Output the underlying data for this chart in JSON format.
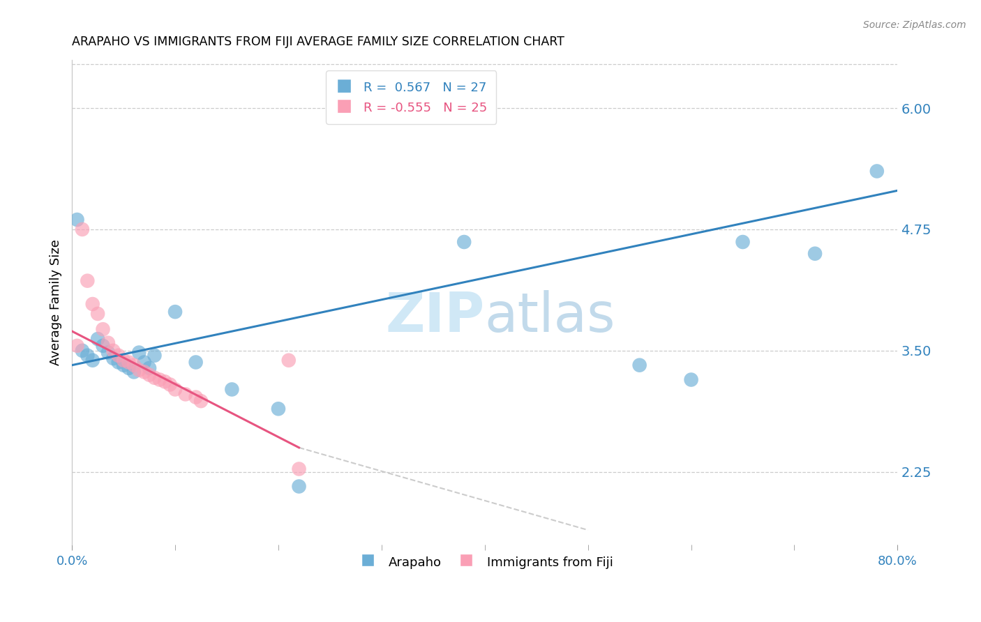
{
  "title": "ARAPAHO VS IMMIGRANTS FROM FIJI AVERAGE FAMILY SIZE CORRELATION CHART",
  "source": "Source: ZipAtlas.com",
  "ylabel": "Average Family Size",
  "right_yticks": [
    2.25,
    3.5,
    4.75,
    6.0
  ],
  "x_min": 0.0,
  "x_max": 0.8,
  "y_min": 1.5,
  "y_max": 6.5,
  "legend_r1": "R =  0.567   N = 27",
  "legend_r2": "R = -0.555   N = 25",
  "blue_color": "#6baed6",
  "pink_color": "#fa9fb5",
  "trend_blue": "#3182bd",
  "trend_pink": "#e75480",
  "trend_gray_color": "#cccccc",
  "arapaho_x": [
    0.005,
    0.01,
    0.015,
    0.02,
    0.025,
    0.03,
    0.035,
    0.04,
    0.045,
    0.05,
    0.055,
    0.06,
    0.065,
    0.07,
    0.075,
    0.08,
    0.1,
    0.12,
    0.155,
    0.2,
    0.22,
    0.38,
    0.55,
    0.6,
    0.65,
    0.72,
    0.78
  ],
  "arapaho_y": [
    4.85,
    3.5,
    3.45,
    3.4,
    3.62,
    3.55,
    3.48,
    3.42,
    3.38,
    3.35,
    3.32,
    3.28,
    3.48,
    3.38,
    3.32,
    3.45,
    3.9,
    3.38,
    3.1,
    2.9,
    2.1,
    4.62,
    3.35,
    3.2,
    4.62,
    4.5,
    5.35
  ],
  "fiji_x": [
    0.005,
    0.01,
    0.015,
    0.02,
    0.025,
    0.03,
    0.035,
    0.04,
    0.045,
    0.05,
    0.055,
    0.06,
    0.065,
    0.07,
    0.075,
    0.08,
    0.085,
    0.09,
    0.095,
    0.1,
    0.11,
    0.12,
    0.125,
    0.21,
    0.22
  ],
  "fiji_y": [
    3.55,
    4.75,
    4.22,
    3.98,
    3.88,
    3.72,
    3.58,
    3.5,
    3.45,
    3.4,
    3.38,
    3.35,
    3.3,
    3.28,
    3.25,
    3.22,
    3.2,
    3.18,
    3.15,
    3.1,
    3.05,
    3.02,
    2.98,
    3.4,
    2.28
  ],
  "blue_line_x": [
    0.0,
    0.8
  ],
  "blue_line_y": [
    3.35,
    5.15
  ],
  "pink_line_x": [
    0.0,
    0.22
  ],
  "pink_line_y": [
    3.7,
    2.5
  ],
  "gray_line_x": [
    0.22,
    0.5
  ],
  "gray_line_y": [
    2.5,
    1.65
  ]
}
